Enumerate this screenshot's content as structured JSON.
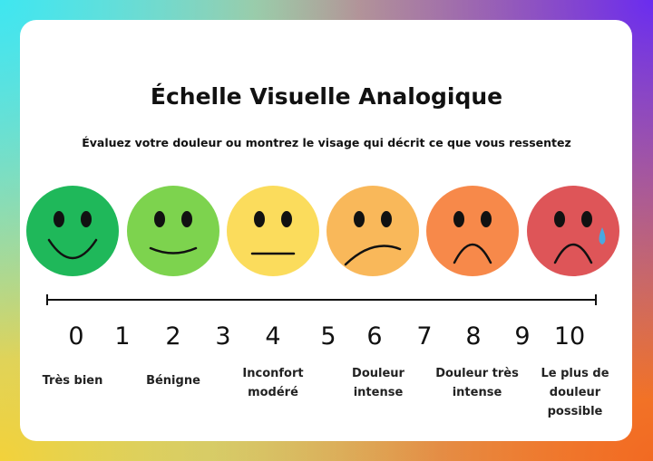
{
  "title": "Échelle Visuelle Analogique",
  "subtitle": "Évaluez votre douleur ou montrez le visage qui décrit ce que vous ressentez",
  "faces": [
    {
      "color": "#1fb85a",
      "mouth": "big-smile"
    },
    {
      "color": "#7dd34e",
      "mouth": "smile"
    },
    {
      "color": "#fbdc5c",
      "mouth": "flat"
    },
    {
      "color": "#f9b85a",
      "mouth": "slight-frown"
    },
    {
      "color": "#f7894a",
      "mouth": "frown"
    },
    {
      "color": "#de5558",
      "mouth": "frown",
      "tear": true
    }
  ],
  "scale": [
    "0",
    "1",
    "2",
    "3",
    "4",
    "5",
    "6",
    "7",
    "8",
    "9",
    "10"
  ],
  "labels": [
    {
      "line1": "Très bien",
      "line2": "",
      "line3": ""
    },
    {
      "line1": "Bénigne",
      "line2": "",
      "line3": ""
    },
    {
      "line1": "Inconfort",
      "line2": "modéré",
      "line3": ""
    },
    {
      "line1": "Douleur",
      "line2": "intense",
      "line3": ""
    },
    {
      "line1": "Douleur très",
      "line2": "intense",
      "line3": ""
    },
    {
      "line1": "Le plus de",
      "line2": "douleur",
      "line3": "possible"
    }
  ]
}
